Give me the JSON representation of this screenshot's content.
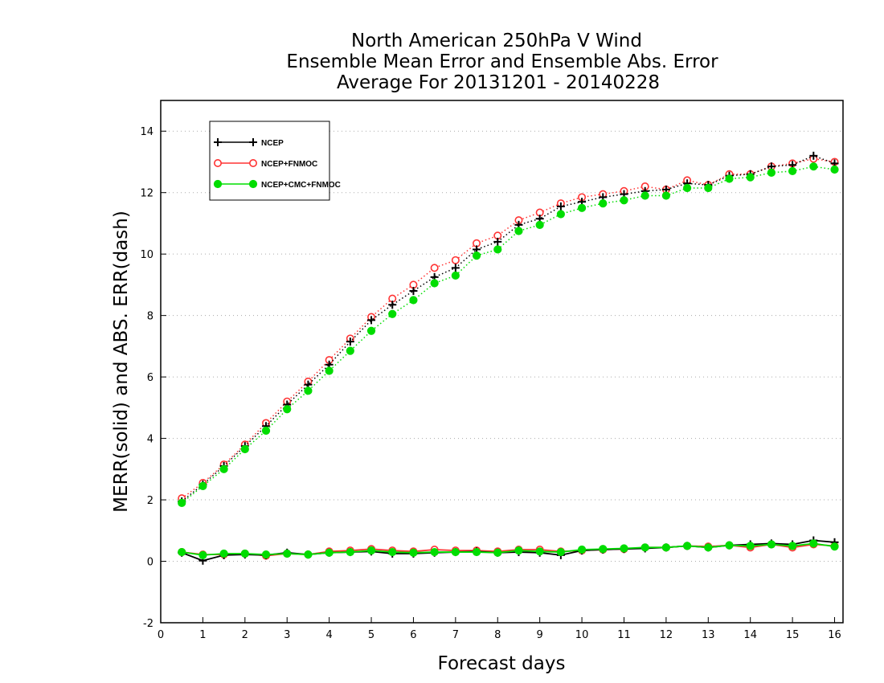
{
  "chart_data": {
    "type": "line",
    "title": [
      "North American 250hPa V Wind",
      "Ensemble Mean Error and Ensemble Abs. Error",
      "Average For 20131201 - 20140228"
    ],
    "xlabel": "Forecast days",
    "ylabel": "MERR(solid) and ABS. ERR(dash)",
    "xlim": [
      0,
      16.2
    ],
    "ylim": [
      -2,
      15
    ],
    "xticks": [
      "0",
      "1",
      "2",
      "3",
      "4",
      "5",
      "6",
      "7",
      "8",
      "9",
      "10",
      "11",
      "12",
      "13",
      "14",
      "15",
      "16"
    ],
    "yticks": [
      "-2",
      "0",
      "2",
      "4",
      "6",
      "8",
      "10",
      "12",
      "14"
    ],
    "grid": "horizontal dotted",
    "legend_position": "top-left",
    "x": [
      0.5,
      1,
      1.5,
      2,
      2.5,
      3,
      3.5,
      4,
      4.5,
      5,
      5.5,
      6,
      6.5,
      7,
      7.5,
      8,
      8.5,
      9,
      9.5,
      10,
      10.5,
      11,
      11.5,
      12,
      12.5,
      13,
      13.5,
      14,
      14.5,
      15,
      15.5,
      16
    ],
    "series": [
      {
        "name": "NCEP",
        "color": "#000000",
        "marker": "plus",
        "merr": [
          0.28,
          0.02,
          0.2,
          0.22,
          0.2,
          0.28,
          0.22,
          0.28,
          0.3,
          0.32,
          0.25,
          0.25,
          0.28,
          0.3,
          0.32,
          0.28,
          0.3,
          0.28,
          0.2,
          0.35,
          0.38,
          0.4,
          0.42,
          0.45,
          0.5,
          0.45,
          0.52,
          0.55,
          0.58,
          0.55,
          0.68,
          0.62
        ],
        "abs_err": [
          1.95,
          2.5,
          3.1,
          3.75,
          4.4,
          5.1,
          5.75,
          6.4,
          7.15,
          7.85,
          8.35,
          8.8,
          9.25,
          9.55,
          10.15,
          10.4,
          10.95,
          11.15,
          11.55,
          11.7,
          11.85,
          11.95,
          12.05,
          12.1,
          12.3,
          12.25,
          12.55,
          12.6,
          12.85,
          12.9,
          13.2,
          12.95
        ]
      },
      {
        "name": "NCEP+FNMOC",
        "color": "#ff3333",
        "marker": "open-circle",
        "merr": [
          0.3,
          0.22,
          0.22,
          0.25,
          0.18,
          0.25,
          0.22,
          0.32,
          0.35,
          0.4,
          0.35,
          0.32,
          0.38,
          0.35,
          0.35,
          0.32,
          0.38,
          0.38,
          0.32,
          0.35,
          0.38,
          0.4,
          0.45,
          0.45,
          0.5,
          0.48,
          0.52,
          0.45,
          0.55,
          0.45,
          0.55,
          0.5
        ],
        "abs_err": [
          2.05,
          2.55,
          3.15,
          3.8,
          4.5,
          5.2,
          5.85,
          6.55,
          7.25,
          7.95,
          8.55,
          9.0,
          9.55,
          9.8,
          10.35,
          10.6,
          11.1,
          11.35,
          11.65,
          11.85,
          11.95,
          12.05,
          12.2,
          12.1,
          12.4,
          12.25,
          12.6,
          12.6,
          12.85,
          12.95,
          13.1,
          13.0
        ]
      },
      {
        "name": "NCEP+CMC+FNMOC",
        "color": "#00dd00",
        "marker": "filled-circle",
        "merr": [
          0.3,
          0.2,
          0.25,
          0.25,
          0.22,
          0.25,
          0.22,
          0.28,
          0.3,
          0.35,
          0.3,
          0.28,
          0.3,
          0.3,
          0.3,
          0.28,
          0.35,
          0.32,
          0.3,
          0.38,
          0.4,
          0.42,
          0.45,
          0.45,
          0.5,
          0.45,
          0.52,
          0.5,
          0.55,
          0.5,
          0.58,
          0.48
        ],
        "abs_err": [
          1.9,
          2.45,
          3.0,
          3.65,
          4.25,
          4.95,
          5.55,
          6.2,
          6.85,
          7.5,
          8.05,
          8.5,
          9.05,
          9.3,
          9.95,
          10.15,
          10.75,
          10.95,
          11.3,
          11.5,
          11.65,
          11.75,
          11.9,
          11.9,
          12.15,
          12.15,
          12.45,
          12.5,
          12.65,
          12.7,
          12.85,
          12.75
        ]
      }
    ]
  }
}
